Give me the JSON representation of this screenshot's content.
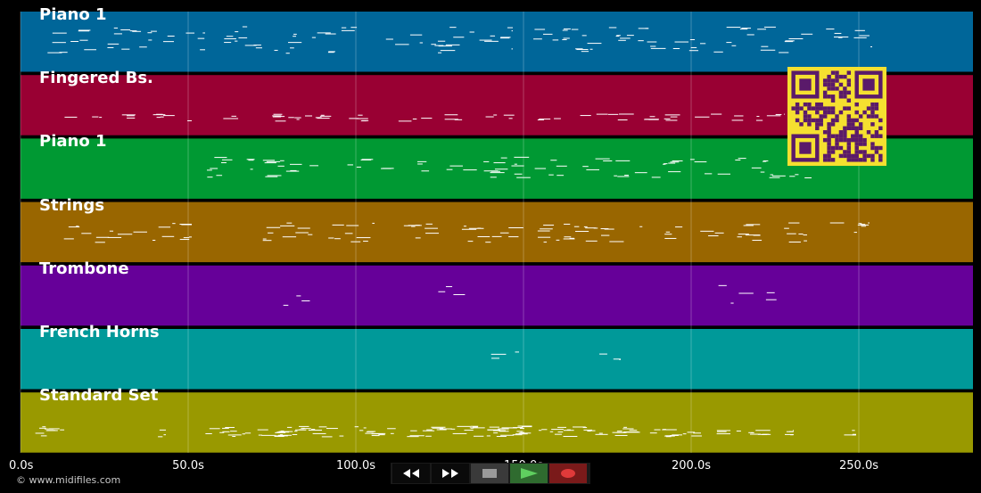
{
  "tracks": [
    {
      "name": "Piano 1",
      "color": "#006699"
    },
    {
      "name": "Fingered Bs.",
      "color": "#990033"
    },
    {
      "name": "Piano 1",
      "color": "#009933"
    },
    {
      "name": "Strings",
      "color": "#996600"
    },
    {
      "name": "Trombone",
      "color": "#660099"
    },
    {
      "name": "French Horns",
      "color": "#009999"
    },
    {
      "name": "Standard Set",
      "color": "#999900"
    }
  ],
  "timeline": {
    "ticks": [
      "0.0s",
      "50.0s",
      "100.0s",
      "150.0s",
      "200.0s",
      "250.0s"
    ],
    "tick_values": [
      0,
      50,
      100,
      150,
      200,
      250
    ],
    "unit": "s"
  },
  "transport": {
    "buttons": [
      {
        "name": "rewind-button",
        "icon": "rewind-icon"
      },
      {
        "name": "fast-forward-button",
        "icon": "fast-forward-icon"
      },
      {
        "name": "stop-button",
        "icon": "stop-icon"
      },
      {
        "name": "play-button",
        "icon": "play-icon"
      },
      {
        "name": "record-button",
        "icon": "record-icon"
      }
    ]
  },
  "footer": {
    "copyright": "© www.midifiles.com"
  },
  "qr": {
    "icon": "qr-code-icon",
    "colors": {
      "fg": "#5a1a6a",
      "bg": "#f5e030"
    }
  },
  "colors": {
    "note": "#ffffff",
    "grid": "#ffffff"
  }
}
